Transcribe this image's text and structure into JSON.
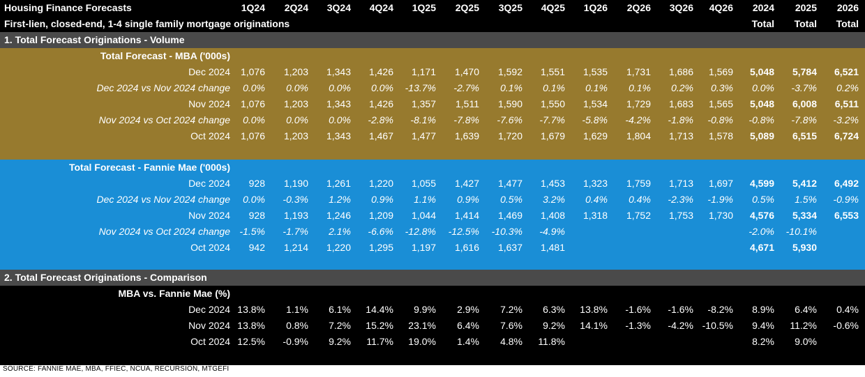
{
  "header": {
    "title": "Housing Finance Forecasts",
    "subtitle": "First-lien, closed-end, 1-4 single family mortgage originations",
    "columns": [
      "1Q24",
      "2Q24",
      "3Q24",
      "4Q24",
      "1Q25",
      "2Q25",
      "3Q25",
      "4Q25",
      "1Q26",
      "2Q26",
      "3Q26",
      "4Q26",
      "2024",
      "2025",
      "2026"
    ],
    "total_labels": [
      "Total",
      "Total",
      "Total"
    ]
  },
  "sections": {
    "volume": {
      "title": "1. Total Forecast Originations - Volume"
    },
    "comparison": {
      "title": "2. Total Forecast Originations - Comparison"
    }
  },
  "mba": {
    "title": "Total Forecast - MBA ('000s)",
    "color": "#977a2e",
    "rows": [
      {
        "label": "Dec 2024",
        "italic": false,
        "values": [
          "1,076",
          "1,203",
          "1,343",
          "1,426",
          "1,171",
          "1,470",
          "1,592",
          "1,551",
          "1,535",
          "1,731",
          "1,686",
          "1,569",
          "5,048",
          "5,784",
          "6,521"
        ]
      },
      {
        "label": "Dec 2024 vs Nov 2024 change",
        "italic": true,
        "values": [
          "0.0%",
          "0.0%",
          "0.0%",
          "0.0%",
          "-13.7%",
          "-2.7%",
          "0.1%",
          "0.1%",
          "0.1%",
          "0.1%",
          "0.2%",
          "0.3%",
          "0.0%",
          "-3.7%",
          "0.2%"
        ]
      },
      {
        "label": "Nov 2024",
        "italic": false,
        "values": [
          "1,076",
          "1,203",
          "1,343",
          "1,426",
          "1,357",
          "1,511",
          "1,590",
          "1,550",
          "1,534",
          "1,729",
          "1,683",
          "1,565",
          "5,048",
          "6,008",
          "6,511"
        ]
      },
      {
        "label": "Nov 2024 vs Oct 2024 change",
        "italic": true,
        "values": [
          "0.0%",
          "0.0%",
          "0.0%",
          "-2.8%",
          "-8.1%",
          "-7.8%",
          "-7.6%",
          "-7.7%",
          "-5.8%",
          "-4.2%",
          "-1.8%",
          "-0.8%",
          "-0.8%",
          "-7.8%",
          "-3.2%"
        ]
      },
      {
        "label": "Oct 2024",
        "italic": false,
        "values": [
          "1,076",
          "1,203",
          "1,343",
          "1,467",
          "1,477",
          "1,639",
          "1,720",
          "1,679",
          "1,629",
          "1,804",
          "1,713",
          "1,578",
          "5,089",
          "6,515",
          "6,724"
        ]
      }
    ]
  },
  "fannie": {
    "title": "Total Forecast - Fannie Mae ('000s)",
    "color": "#1a8ed6",
    "rows": [
      {
        "label": "Dec 2024",
        "italic": false,
        "values": [
          "928",
          "1,190",
          "1,261",
          "1,220",
          "1,055",
          "1,427",
          "1,477",
          "1,453",
          "1,323",
          "1,759",
          "1,713",
          "1,697",
          "4,599",
          "5,412",
          "6,492"
        ]
      },
      {
        "label": "Dec 2024 vs Nov 2024 change",
        "italic": true,
        "values": [
          "0.0%",
          "-0.3%",
          "1.2%",
          "0.9%",
          "1.1%",
          "0.9%",
          "0.5%",
          "3.2%",
          "0.4%",
          "0.4%",
          "-2.3%",
          "-1.9%",
          "0.5%",
          "1.5%",
          "-0.9%"
        ]
      },
      {
        "label": "Nov 2024",
        "italic": false,
        "values": [
          "928",
          "1,193",
          "1,246",
          "1,209",
          "1,044",
          "1,414",
          "1,469",
          "1,408",
          "1,318",
          "1,752",
          "1,753",
          "1,730",
          "4,576",
          "5,334",
          "6,553"
        ]
      },
      {
        "label": "Nov 2024 vs Oct 2024 change",
        "italic": true,
        "values": [
          "-1.5%",
          "-1.7%",
          "2.1%",
          "-6.6%",
          "-12.8%",
          "-12.5%",
          "-10.3%",
          "-4.9%",
          "",
          "",
          "",
          "",
          "-2.0%",
          "-10.1%",
          ""
        ]
      },
      {
        "label": "Oct 2024",
        "italic": false,
        "values": [
          "942",
          "1,214",
          "1,220",
          "1,295",
          "1,197",
          "1,616",
          "1,637",
          "1,481",
          "",
          "",
          "",
          "",
          "4,671",
          "5,930",
          ""
        ]
      }
    ]
  },
  "comparison": {
    "title": "MBA vs. Fannie Mae (%)",
    "rows": [
      {
        "label": "Dec 2024",
        "italic": false,
        "values": [
          "13.8%",
          "1.1%",
          "6.1%",
          "14.4%",
          "9.9%",
          "2.9%",
          "7.2%",
          "6.3%",
          "13.8%",
          "-1.6%",
          "-1.6%",
          "-8.2%",
          "8.9%",
          "6.4%",
          "0.4%"
        ]
      },
      {
        "label": "Nov 2024",
        "italic": false,
        "values": [
          "13.8%",
          "0.8%",
          "7.2%",
          "15.2%",
          "23.1%",
          "6.4%",
          "7.6%",
          "9.2%",
          "14.1%",
          "-1.3%",
          "-4.2%",
          "-10.5%",
          "9.4%",
          "11.2%",
          "-0.6%"
        ]
      },
      {
        "label": "Oct 2024",
        "italic": false,
        "values": [
          "12.5%",
          "-0.9%",
          "9.2%",
          "11.7%",
          "19.0%",
          "1.4%",
          "4.8%",
          "11.8%",
          "",
          "",
          "",
          "",
          "8.2%",
          "9.0%",
          ""
        ]
      }
    ]
  },
  "source": "SOURCE: FANNIE MAE, MBA, FFIEC, NCUA, RECURSION, MTGEFI"
}
